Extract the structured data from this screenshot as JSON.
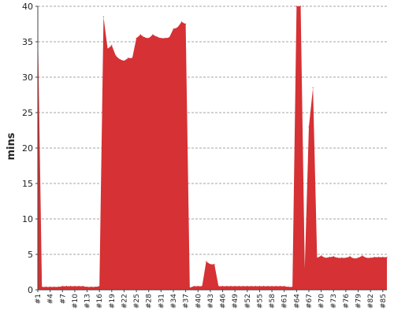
{
  "chart_data": {
    "type": "area",
    "ylabel": "mins",
    "xlabel": "",
    "title": "",
    "ylim": [
      0,
      40
    ],
    "yticks": [
      0,
      5,
      10,
      15,
      20,
      25,
      30,
      35,
      40
    ],
    "grid": true,
    "series_color": "#d63134",
    "x": [
      "#1",
      "#2",
      "#3",
      "#4",
      "#5",
      "#6",
      "#7",
      "#8",
      "#9",
      "#10",
      "#11",
      "#12",
      "#13",
      "#14",
      "#15",
      "#16",
      "#17",
      "#18",
      "#19",
      "#20",
      "#21",
      "#22",
      "#23",
      "#24",
      "#25",
      "#26",
      "#27",
      "#28",
      "#29",
      "#30",
      "#31",
      "#32",
      "#33",
      "#34",
      "#35",
      "#36",
      "#37",
      "#38",
      "#39",
      "#40",
      "#41",
      "#42",
      "#43",
      "#44",
      "#45",
      "#46",
      "#47",
      "#48",
      "#49",
      "#50",
      "#51",
      "#52",
      "#53",
      "#54",
      "#55",
      "#56",
      "#57",
      "#58",
      "#59",
      "#60",
      "#61",
      "#62",
      "#63",
      "#64",
      "#65",
      "#66",
      "#67",
      "#68",
      "#69",
      "#70",
      "#71",
      "#72",
      "#73",
      "#74",
      "#75",
      "#76",
      "#77",
      "#78",
      "#79",
      "#80",
      "#81",
      "#82",
      "#83",
      "#84",
      "#85",
      "#86"
    ],
    "xtick_labels": [
      "#1",
      "#4",
      "#7",
      "#10",
      "#13",
      "#16",
      "#19",
      "#22",
      "#25",
      "#28",
      "#31",
      "#34",
      "#37",
      "#40",
      "#43",
      "#46",
      "#49",
      "#52",
      "#55",
      "#58",
      "#61",
      "#64",
      "#67",
      "#70",
      "#73",
      "#76",
      "#79",
      "#82",
      "#85"
    ],
    "values": [
      37.5,
      0.4,
      0.4,
      0.4,
      0.4,
      0.4,
      0.5,
      0.5,
      0.5,
      0.5,
      0.5,
      0.5,
      0.4,
      0.4,
      0.4,
      0.5,
      38.5,
      34,
      34.5,
      33,
      32.5,
      32.3,
      32.7,
      32.7,
      35.5,
      36,
      35.6,
      35.5,
      36,
      35.7,
      35.5,
      35.5,
      35.6,
      36.8,
      37,
      37.8,
      37.5,
      0.3,
      0.5,
      0.5,
      0.5,
      4,
      3.6,
      3.6,
      0.5,
      0.5,
      0.5,
      0.5,
      0.5,
      0.5,
      0.5,
      0.5,
      0.5,
      0.5,
      0.5,
      0.5,
      0.5,
      0.5,
      0.5,
      0.5,
      0.5,
      0.4,
      0.4,
      41,
      41,
      3,
      23,
      28.5,
      4.5,
      4.8,
      4.5,
      4.6,
      4.7,
      4.5,
      4.5,
      4.5,
      4.7,
      4.4,
      4.5,
      4.8,
      4.5,
      4.5,
      4.6,
      4.6,
      4.6,
      4.6
    ]
  }
}
